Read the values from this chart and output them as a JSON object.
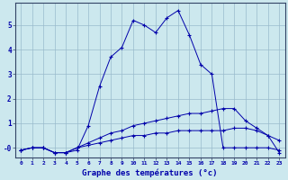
{
  "title": "Graphe des températures (°c)",
  "background_color": "#cce8ee",
  "plot_bg_color": "#cce8ee",
  "line_color": "#0000aa",
  "grid_color": "#99bbcc",
  "x_values": [
    0,
    1,
    2,
    3,
    4,
    5,
    6,
    7,
    8,
    9,
    10,
    11,
    12,
    13,
    14,
    15,
    16,
    17,
    18,
    19,
    20,
    21,
    22,
    23
  ],
  "series1": [
    -0.1,
    0.0,
    0.0,
    -0.2,
    -0.2,
    -0.1,
    0.9,
    2.5,
    3.7,
    4.1,
    5.2,
    5.0,
    4.7,
    5.3,
    5.6,
    4.6,
    3.4,
    3.0,
    0.0,
    0.0,
    0.0,
    0.0,
    0.0,
    -0.1
  ],
  "series2": [
    -0.1,
    0.0,
    0.0,
    -0.2,
    -0.2,
    0.0,
    0.2,
    0.4,
    0.6,
    0.7,
    0.9,
    1.0,
    1.1,
    1.2,
    1.3,
    1.4,
    1.4,
    1.5,
    1.6,
    1.6,
    1.1,
    0.8,
    0.5,
    0.3
  ],
  "series3": [
    -0.1,
    0.0,
    0.0,
    -0.2,
    -0.2,
    0.0,
    0.1,
    0.2,
    0.3,
    0.4,
    0.5,
    0.5,
    0.6,
    0.6,
    0.7,
    0.7,
    0.7,
    0.7,
    0.7,
    0.8,
    0.8,
    0.7,
    0.5,
    -0.2
  ],
  "ylim": [
    -0.4,
    5.9
  ],
  "ytick_vals": [
    0,
    1,
    2,
    3,
    4,
    5
  ],
  "ytick_labels": [
    "-0",
    "1",
    "2",
    "3",
    "4",
    "5"
  ]
}
